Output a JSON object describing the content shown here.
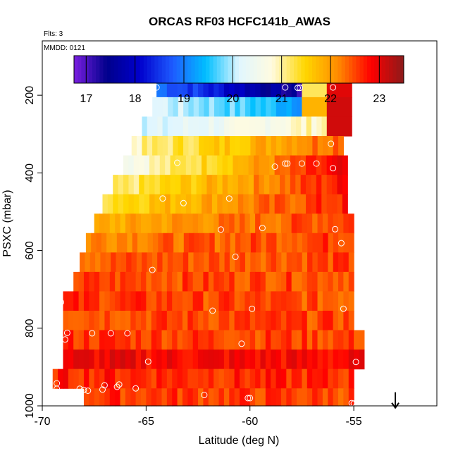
{
  "chart_data": {
    "type": "heatmap",
    "title": "ORCAS RF03 HCFC141b_AWAS",
    "flts_label": "Flts: 3",
    "mmdd_label": "MMDD: 0121",
    "xlabel": "Latitude (deg N)",
    "ylabel": "PSXC (mbar)",
    "xlim": [
      -70,
      -51
    ],
    "ylim": [
      1000,
      60
    ],
    "x_ticks": [
      -70,
      -65,
      -60,
      -55
    ],
    "x_tick_labels": [
      "-70",
      "-65",
      "-60",
      "-55"
    ],
    "y_ticks": [
      200,
      400,
      600,
      800,
      1000
    ],
    "y_tick_labels": [
      "200",
      "400",
      "600",
      "800",
      "1000"
    ],
    "colorbar": {
      "min": 16.75,
      "max": 23.5,
      "ticks": [
        17,
        18,
        19,
        20,
        21,
        22,
        23
      ],
      "tick_labels": [
        "17",
        "18",
        "19",
        "20",
        "21",
        "22",
        "23"
      ],
      "palette": [
        "#7a1fe0",
        "#00008b",
        "#0000cd",
        "#1e5bff",
        "#00bfff",
        "#e0f6ff",
        "#fffbe0",
        "#ffd700",
        "#ff8c00",
        "#ff0000",
        "#8b1a1a"
      ]
    },
    "bins": [
      {
        "p": [
          160,
          205
        ],
        "lat": [
          -64.5,
          -57.5
        ],
        "v_start": 19.0,
        "v_end": 17.2,
        "right": [
          [
            -57.5,
            -56.3,
            21.2
          ],
          [
            -56.3,
            -55.1,
            23.0
          ]
        ]
      },
      {
        "p": [
          205,
          255
        ],
        "lat": [
          -64.7,
          -57.5
        ],
        "v_start": 20.2,
        "v_end": 19.3,
        "right": [
          [
            -57.5,
            -56.3,
            21.8
          ],
          [
            -56.3,
            -55.1,
            23.1
          ]
        ]
      },
      {
        "p": [
          255,
          305
        ],
        "lat": [
          -65.2,
          -56.3
        ],
        "v_start": 20.0,
        "v_end": 21.0,
        "right": [
          [
            -56.3,
            -55.1,
            23.1
          ]
        ]
      },
      {
        "p": [
          305,
          355
        ],
        "lat": [
          -65.7,
          -55.5
        ],
        "v_start": 20.9,
        "v_end": 22.5,
        "right": []
      },
      {
        "p": [
          355,
          405
        ],
        "lat": [
          -66.1,
          -55.3
        ],
        "v_start": 20.6,
        "v_end": 22.9,
        "right": []
      },
      {
        "p": [
          405,
          455
        ],
        "lat": [
          -66.6,
          -55.3
        ],
        "v_start": 21.0,
        "v_end": 22.8,
        "right": []
      },
      {
        "p": [
          455,
          505
        ],
        "lat": [
          -67.1,
          -55.3
        ],
        "v_start": 21.4,
        "v_end": 22.7,
        "right": []
      },
      {
        "p": [
          505,
          555
        ],
        "lat": [
          -67.5,
          -55.0
        ],
        "v_start": 21.8,
        "v_end": 22.6,
        "right": []
      },
      {
        "p": [
          555,
          605
        ],
        "lat": [
          -67.9,
          -55.0
        ],
        "v_start": 22.2,
        "v_end": 22.6,
        "right": []
      },
      {
        "p": [
          605,
          655
        ],
        "lat": [
          -68.2,
          -55.0
        ],
        "v_start": 22.4,
        "v_end": 22.5,
        "right": []
      },
      {
        "p": [
          655,
          705
        ],
        "lat": [
          -68.5,
          -55.0
        ],
        "v_start": 22.5,
        "v_end": 22.5,
        "right": []
      },
      {
        "p": [
          705,
          755
        ],
        "lat": [
          -69.0,
          -55.0
        ],
        "v_start": 22.6,
        "v_end": 22.4,
        "right": []
      },
      {
        "p": [
          755,
          805
        ],
        "lat": [
          -69.0,
          -55.0
        ],
        "v_start": 22.5,
        "v_end": 22.5,
        "right": []
      },
      {
        "p": [
          805,
          855
        ],
        "lat": [
          -69.0,
          -54.5
        ],
        "v_start": 22.6,
        "v_end": 22.5,
        "right": []
      },
      {
        "p": [
          855,
          905
        ],
        "lat": [
          -69.0,
          -54.5
        ],
        "v_start": 22.9,
        "v_end": 22.8,
        "right": []
      },
      {
        "p": [
          905,
          955
        ],
        "lat": [
          -69.5,
          -55.0
        ],
        "v_start": 22.7,
        "v_end": 22.6,
        "right": []
      },
      {
        "p": [
          955,
          1000
        ],
        "lat": [
          -68.0,
          -55.0
        ],
        "v_start": 22.6,
        "v_end": 22.5,
        "right": []
      }
    ],
    "points": [
      {
        "lat": -64.5,
        "p": 180
      },
      {
        "lat": -58.3,
        "p": 180
      },
      {
        "lat": -57.7,
        "p": 181
      },
      {
        "lat": -57.6,
        "p": 181
      },
      {
        "lat": -56.0,
        "p": 180
      },
      {
        "lat": -56.1,
        "p": 325
      },
      {
        "lat": -63.5,
        "p": 374
      },
      {
        "lat": -58.8,
        "p": 384
      },
      {
        "lat": -58.3,
        "p": 376
      },
      {
        "lat": -58.2,
        "p": 376
      },
      {
        "lat": -57.5,
        "p": 376
      },
      {
        "lat": -56.8,
        "p": 376
      },
      {
        "lat": -56.0,
        "p": 388
      },
      {
        "lat": -64.2,
        "p": 466
      },
      {
        "lat": -63.2,
        "p": 478
      },
      {
        "lat": -61.0,
        "p": 466
      },
      {
        "lat": -61.4,
        "p": 546
      },
      {
        "lat": -59.4,
        "p": 542
      },
      {
        "lat": -55.9,
        "p": 545
      },
      {
        "lat": -55.6,
        "p": 581
      },
      {
        "lat": -60.7,
        "p": 616
      },
      {
        "lat": -64.7,
        "p": 650
      },
      {
        "lat": -61.8,
        "p": 755
      },
      {
        "lat": -59.9,
        "p": 750
      },
      {
        "lat": -55.5,
        "p": 750
      },
      {
        "lat": -69.1,
        "p": 733
      },
      {
        "lat": -68.8,
        "p": 812
      },
      {
        "lat": -68.9,
        "p": 829
      },
      {
        "lat": -67.6,
        "p": 813
      },
      {
        "lat": -66.7,
        "p": 813
      },
      {
        "lat": -65.9,
        "p": 813
      },
      {
        "lat": -60.4,
        "p": 840
      },
      {
        "lat": -64.9,
        "p": 886
      },
      {
        "lat": -54.9,
        "p": 887
      },
      {
        "lat": -69.3,
        "p": 942
      },
      {
        "lat": -69.3,
        "p": 956
      },
      {
        "lat": -68.2,
        "p": 956
      },
      {
        "lat": -68.0,
        "p": 959
      },
      {
        "lat": -67.8,
        "p": 961
      },
      {
        "lat": -67.0,
        "p": 947
      },
      {
        "lat": -67.1,
        "p": 958
      },
      {
        "lat": -66.4,
        "p": 951
      },
      {
        "lat": -66.3,
        "p": 945
      },
      {
        "lat": -65.5,
        "p": 955
      },
      {
        "lat": -62.2,
        "p": 972
      },
      {
        "lat": -60.1,
        "p": 980
      },
      {
        "lat": -60.0,
        "p": 980
      },
      {
        "lat": -55.1,
        "p": 993
      },
      {
        "lat": -55.0,
        "p": 994
      }
    ],
    "arrow": {
      "lat": -53.0,
      "p_from": 965,
      "p_to": 1005
    }
  }
}
